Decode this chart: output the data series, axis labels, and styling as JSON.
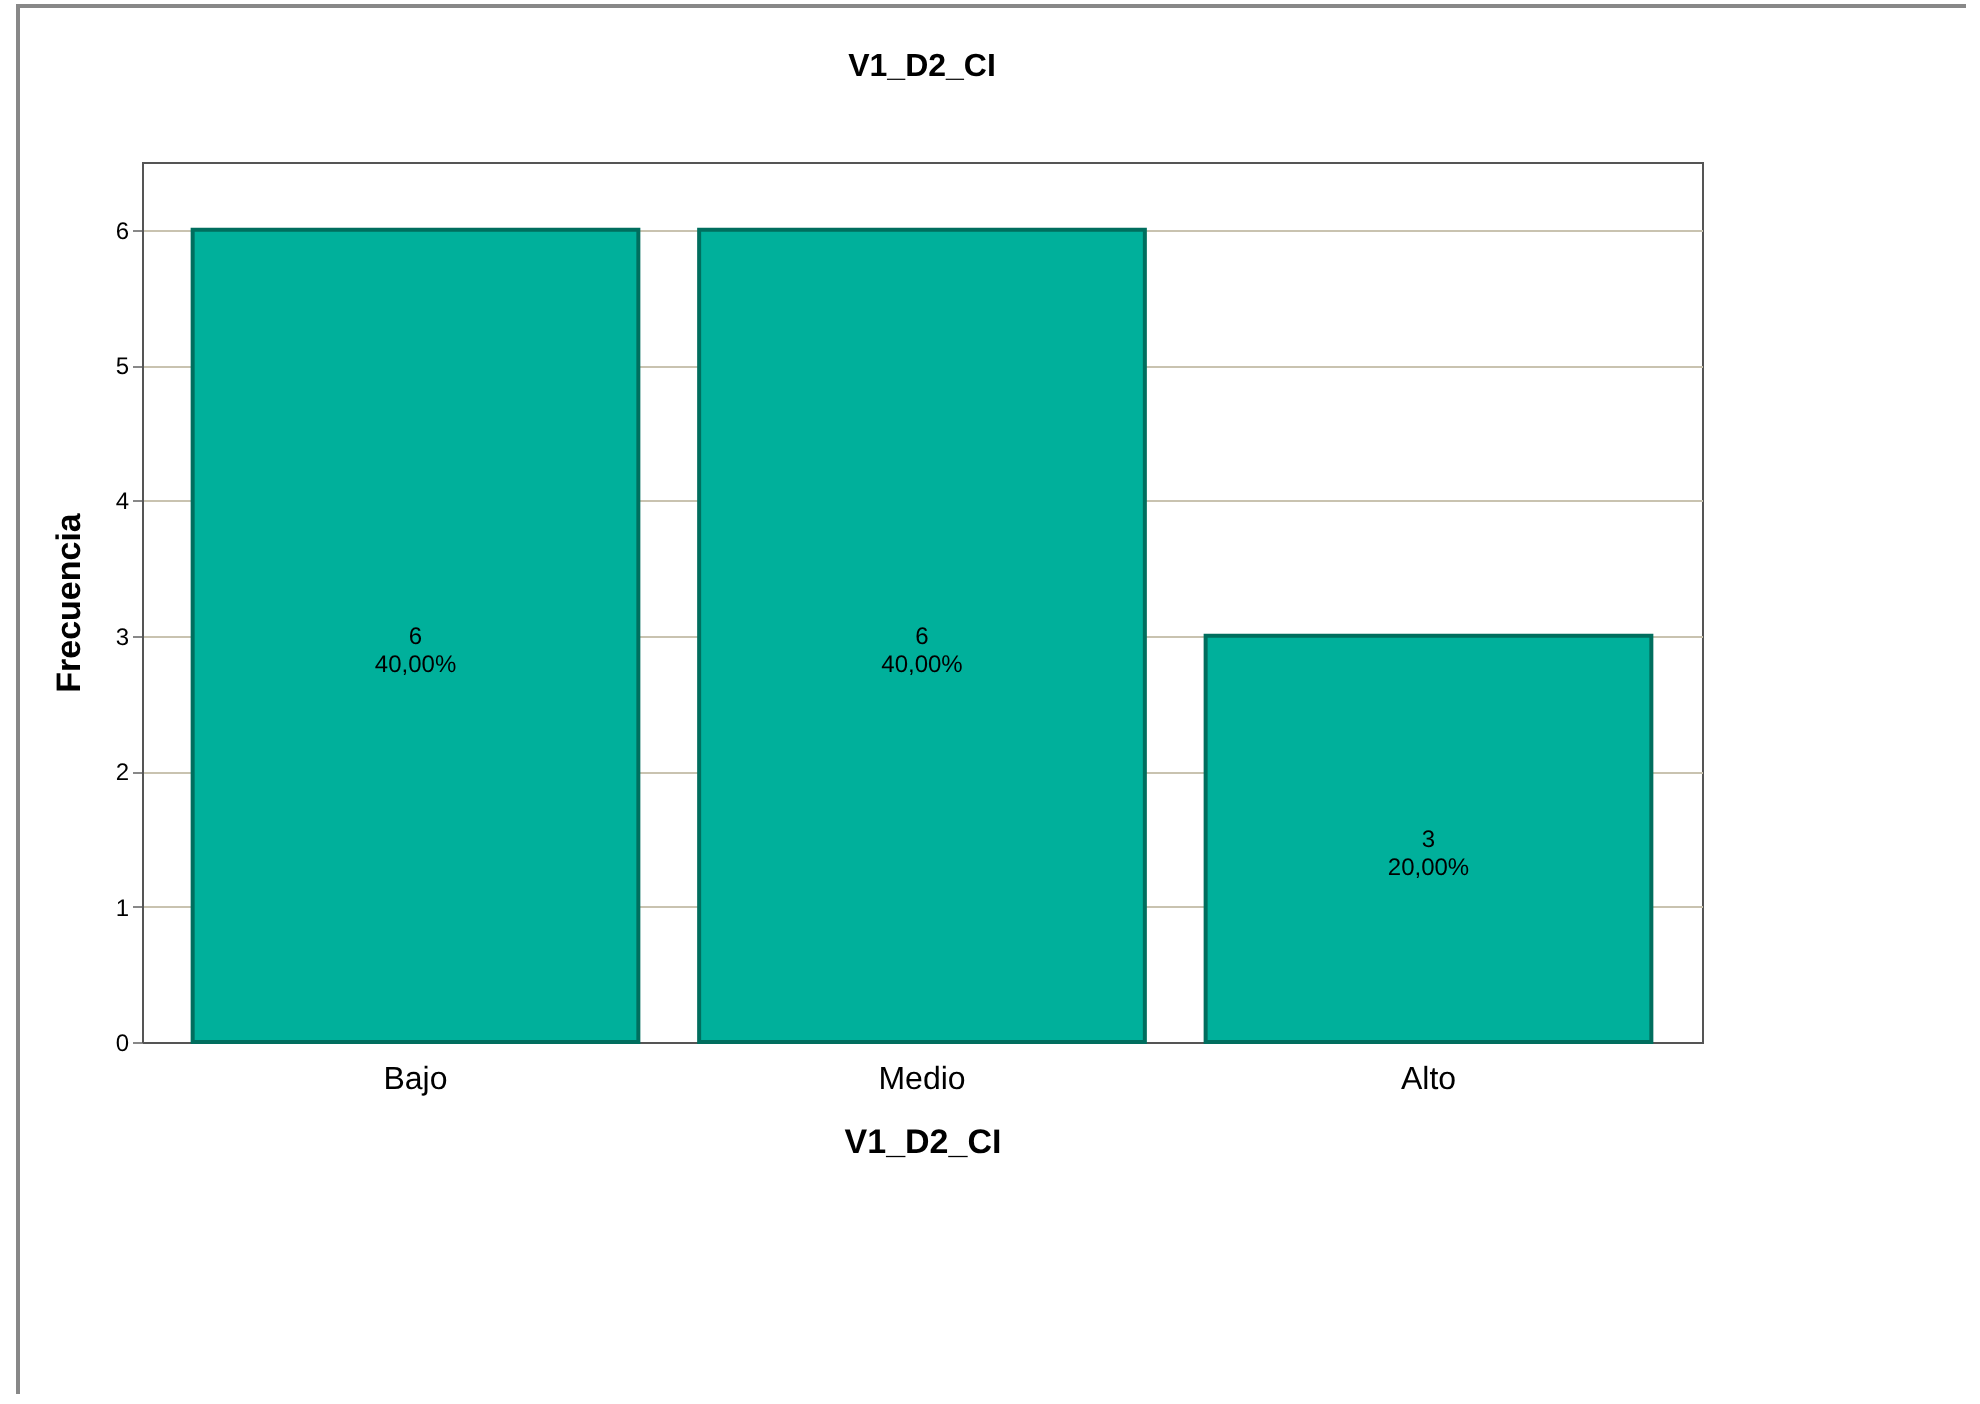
{
  "chart_data": {
    "type": "bar",
    "title": "V1_D2_CI",
    "xlabel": "V1_D2_CI",
    "ylabel": "Frecuencia",
    "categories": [
      "Bajo",
      "Medio",
      "Alto"
    ],
    "values": [
      6,
      6,
      3
    ],
    "value_labels": [
      "6\n40,00%",
      "6\n40,00%",
      "3\n20,00%"
    ],
    "color": "#00b09b",
    "ylim": [
      0,
      6.5
    ],
    "yticks": [
      0,
      1,
      2,
      3,
      4,
      5,
      6
    ],
    "grid": "y"
  }
}
